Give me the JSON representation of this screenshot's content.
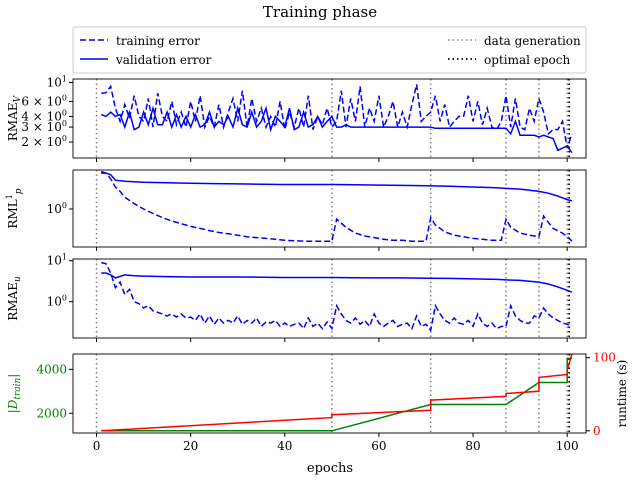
{
  "figure": {
    "title": "Training phase",
    "x_axis_label": "epochs",
    "x_ticks": [
      0,
      20,
      40,
      60,
      80,
      100
    ]
  },
  "legend": [
    {
      "name": "training error",
      "style": "dashed",
      "color": "#0000ff"
    },
    {
      "name": "validation error",
      "style": "solid",
      "color": "#0000ff"
    },
    {
      "name": "data generation",
      "style": "dotted",
      "color": "#808080"
    },
    {
      "name": "optimal epoch",
      "style": "dotted",
      "color": "#000000"
    }
  ],
  "colors": {
    "blue": "#0000ff",
    "green": "#008000",
    "red": "#ff0000",
    "gray": "#808080",
    "black": "#000000"
  },
  "chart_data": [
    {
      "type": "line",
      "ylabel": "RMAE_V",
      "yscale": "log",
      "ylim": [
        1.3,
        11
      ],
      "y_ticks": [
        {
          "v": 10,
          "t": "10"
        },
        {
          "v": 6,
          "t": "6 × 10"
        },
        {
          "v": 4,
          "t": "4 × 10"
        },
        {
          "v": 3,
          "t": "3 × 10"
        },
        {
          "v": 2,
          "t": "2 × 10"
        }
      ],
      "xlim": [
        -5,
        104
      ],
      "vlines_data_generation": [
        0,
        50,
        71,
        87,
        94,
        100
      ],
      "vline_optimal": 100,
      "series": [
        {
          "name": "training error",
          "style": "dashed",
          "x": [
            1,
            2,
            3,
            4,
            5,
            6,
            7,
            8,
            9,
            10,
            11,
            12,
            13,
            14,
            15,
            16,
            17,
            18,
            19,
            20,
            21,
            22,
            23,
            24,
            25,
            26,
            27,
            28,
            29,
            30,
            31,
            32,
            33,
            34,
            35,
            36,
            37,
            38,
            39,
            40,
            41,
            42,
            43,
            44,
            45,
            46,
            47,
            48,
            49,
            50,
            51,
            52,
            53,
            54,
            55,
            56,
            57,
            58,
            59,
            60,
            61,
            62,
            63,
            64,
            65,
            66,
            67,
            68,
            69,
            70,
            71,
            72,
            73,
            74,
            75,
            76,
            77,
            78,
            79,
            80,
            81,
            82,
            83,
            84,
            85,
            86,
            87,
            88,
            89,
            90,
            91,
            92,
            93,
            94,
            95,
            96,
            97,
            98,
            99,
            100,
            101
          ],
          "y": [
            7.5,
            7.6,
            9.0,
            5.0,
            3.5,
            5.5,
            3.8,
            7.0,
            4.0,
            3.5,
            6.5,
            3.0,
            7.5,
            4.0,
            3.5,
            6.0,
            3.2,
            4.5,
            3.0,
            6.0,
            3.5,
            7.0,
            3.0,
            4.0,
            3.0,
            5.5,
            3.0,
            4.5,
            6.5,
            3.5,
            8.0,
            3.0,
            6.5,
            3.5,
            5.0,
            3.0,
            4.0,
            3.0,
            6.0,
            2.8,
            4.5,
            3.0,
            5.0,
            3.0,
            7.0,
            2.8,
            4.0,
            3.2,
            5.0,
            3.0,
            3.5,
            8.0,
            3.0,
            6.5,
            3.5,
            9.0,
            3.0,
            5.0,
            3.5,
            7.0,
            3.0,
            4.0,
            6.0,
            3.0,
            4.5,
            3.0,
            5.5,
            9.5,
            3.5,
            4.0,
            4.5,
            7.0,
            3.5,
            5.5,
            3.0,
            3.5,
            4.0,
            4.0,
            7.0,
            3.5,
            6.0,
            3.2,
            5.0,
            3.0,
            2.8,
            3.5,
            7.0,
            3.0,
            6.5,
            3.0,
            2.8,
            5.0,
            3.5,
            6.5,
            4.5,
            2.5,
            2.8,
            2.8,
            3.5,
            1.7,
            2.5
          ]
        },
        {
          "name": "validation error",
          "style": "solid",
          "x": [
            1,
            2,
            3,
            4,
            5,
            6,
            7,
            8,
            9,
            10,
            11,
            12,
            13,
            14,
            15,
            16,
            17,
            18,
            19,
            20,
            21,
            22,
            23,
            24,
            25,
            26,
            27,
            28,
            29,
            30,
            31,
            32,
            33,
            34,
            35,
            36,
            37,
            38,
            39,
            40,
            41,
            42,
            43,
            44,
            45,
            46,
            47,
            48,
            49,
            50,
            51,
            52,
            53,
            54,
            55,
            56,
            57,
            58,
            59,
            60,
            61,
            62,
            63,
            64,
            65,
            66,
            67,
            68,
            69,
            70,
            71,
            72,
            73,
            74,
            75,
            76,
            77,
            78,
            79,
            80,
            81,
            82,
            83,
            84,
            85,
            86,
            87,
            88,
            89,
            90,
            91,
            92,
            93,
            94,
            95,
            96,
            97,
            98,
            99,
            100,
            101
          ],
          "y": [
            4.2,
            4.0,
            4.5,
            4.0,
            4.2,
            3.0,
            4.5,
            2.8,
            3.0,
            4.5,
            3.2,
            5.0,
            3.2,
            3.2,
            4.5,
            3.0,
            4.2,
            3.0,
            4.0,
            3.0,
            4.2,
            3.0,
            3.2,
            4.5,
            3.0,
            3.5,
            3.2,
            4.0,
            3.0,
            5.0,
            3.2,
            3.0,
            4.5,
            3.0,
            3.5,
            5.0,
            2.8,
            4.0,
            3.5,
            3.0,
            5.0,
            2.8,
            3.0,
            4.5,
            3.0,
            3.2,
            4.0,
            3.0,
            3.5,
            4.0,
            3.0,
            3.0,
            3.2,
            3.0,
            3.0,
            3.0,
            3.0,
            3.0,
            3.0,
            3.0,
            3.0,
            3.0,
            3.0,
            3.0,
            3.0,
            3.0,
            3.0,
            3.0,
            3.0,
            3.0,
            3.0,
            2.9,
            2.9,
            2.9,
            2.9,
            2.9,
            2.9,
            2.9,
            2.9,
            2.9,
            2.9,
            2.9,
            2.9,
            2.9,
            2.9,
            2.9,
            2.9,
            2.5,
            3.5,
            2.4,
            2.4,
            2.4,
            2.4,
            2.3,
            2.4,
            2.3,
            2.2,
            1.6,
            1.7,
            1.8,
            1.5
          ]
        }
      ]
    },
    {
      "type": "line",
      "ylabel": "RML^1_p",
      "yscale": "log",
      "ylim": [
        0.15,
        7
      ],
      "y_ticks": [
        {
          "v": 1,
          "t": "10"
        }
      ],
      "xlim": [
        -5,
        104
      ],
      "vlines_data_generation": [
        0,
        50,
        71,
        87,
        94,
        100
      ],
      "vline_optimal": 100,
      "series": [
        {
          "name": "training error",
          "style": "dashed",
          "x": [
            1,
            2,
            3,
            4,
            5,
            6,
            8,
            10,
            12,
            14,
            16,
            18,
            20,
            22,
            24,
            26,
            28,
            30,
            32,
            34,
            36,
            38,
            40,
            42,
            44,
            46,
            48,
            50,
            51,
            53,
            55,
            57,
            59,
            61,
            63,
            65,
            67,
            69,
            70,
            71,
            72,
            74,
            76,
            78,
            80,
            82,
            84,
            86,
            87,
            88,
            90,
            92,
            94,
            95,
            97,
            99,
            100,
            101
          ],
          "y": [
            6.5,
            6.0,
            4.5,
            3.0,
            2.4,
            1.8,
            1.3,
            1.0,
            0.8,
            0.65,
            0.55,
            0.48,
            0.42,
            0.38,
            0.34,
            0.31,
            0.29,
            0.27,
            0.25,
            0.24,
            0.23,
            0.22,
            0.21,
            0.205,
            0.2,
            0.2,
            0.2,
            0.2,
            0.6,
            0.4,
            0.3,
            0.26,
            0.24,
            0.22,
            0.21,
            0.21,
            0.2,
            0.2,
            0.2,
            0.65,
            0.45,
            0.32,
            0.27,
            0.25,
            0.23,
            0.22,
            0.21,
            0.21,
            0.6,
            0.4,
            0.3,
            0.27,
            0.25,
            0.7,
            0.38,
            0.3,
            0.25,
            0.2
          ]
        },
        {
          "name": "validation error",
          "style": "solid",
          "x": [
            1,
            2,
            3,
            4,
            6,
            8,
            10,
            15,
            20,
            25,
            30,
            35,
            40,
            45,
            50,
            55,
            60,
            65,
            70,
            75,
            80,
            85,
            87,
            90,
            94,
            96,
            98,
            100,
            101
          ],
          "y": [
            6.0,
            6.0,
            5.5,
            4.2,
            4.0,
            3.9,
            3.8,
            3.7,
            3.6,
            3.55,
            3.5,
            3.45,
            3.4,
            3.4,
            3.4,
            3.35,
            3.3,
            3.25,
            3.2,
            3.1,
            3.0,
            2.9,
            2.8,
            2.7,
            2.4,
            2.2,
            1.9,
            1.6,
            1.5
          ]
        }
      ]
    },
    {
      "type": "line",
      "ylabel": "RMAE_u",
      "yscale": "log",
      "ylim": [
        0.13,
        11
      ],
      "y_ticks": [
        {
          "v": 10,
          "t": "10"
        },
        {
          "v": 1,
          "t": "10"
        }
      ],
      "xlim": [
        -5,
        104
      ],
      "vlines_data_generation": [
        0,
        50,
        71,
        87,
        94,
        100
      ],
      "vline_optimal": 100,
      "series": [
        {
          "name": "training error",
          "style": "dashed",
          "x": [
            1,
            2,
            3,
            4,
            5,
            6,
            7,
            8,
            9,
            10,
            11,
            12,
            13,
            14,
            15,
            16,
            17,
            18,
            19,
            20,
            21,
            22,
            23,
            24,
            25,
            26,
            27,
            28,
            29,
            30,
            31,
            32,
            33,
            34,
            35,
            36,
            37,
            38,
            39,
            40,
            41,
            42,
            43,
            44,
            45,
            46,
            47,
            48,
            49,
            50,
            51,
            52,
            53,
            54,
            55,
            56,
            57,
            58,
            59,
            60,
            61,
            62,
            63,
            64,
            65,
            66,
            67,
            68,
            69,
            70,
            71,
            72,
            73,
            74,
            75,
            76,
            77,
            78,
            79,
            80,
            81,
            82,
            83,
            84,
            85,
            86,
            87,
            88,
            89,
            90,
            91,
            92,
            93,
            94,
            95,
            96,
            97,
            98,
            99,
            100,
            101
          ],
          "y": [
            9.0,
            8.5,
            5.0,
            2.2,
            3.0,
            1.5,
            2.0,
            1.0,
            0.9,
            0.7,
            0.8,
            0.6,
            0.55,
            0.5,
            0.45,
            0.5,
            0.42,
            0.5,
            0.4,
            0.42,
            0.35,
            0.5,
            0.3,
            0.45,
            0.28,
            0.4,
            0.3,
            0.35,
            0.3,
            0.45,
            0.28,
            0.35,
            0.3,
            0.4,
            0.25,
            0.32,
            0.3,
            0.35,
            0.25,
            0.3,
            0.25,
            0.28,
            0.3,
            0.22,
            0.4,
            0.25,
            0.3,
            0.22,
            0.32,
            0.22,
            0.8,
            0.5,
            0.35,
            0.3,
            0.4,
            0.28,
            0.35,
            0.25,
            0.5,
            0.3,
            0.25,
            0.3,
            0.35,
            0.25,
            0.28,
            0.3,
            0.22,
            0.45,
            0.25,
            0.28,
            0.2,
            0.8,
            0.5,
            0.35,
            0.3,
            0.4,
            0.3,
            0.28,
            0.35,
            0.25,
            0.5,
            0.3,
            0.25,
            0.3,
            0.22,
            0.25,
            0.25,
            0.8,
            0.45,
            0.35,
            0.3,
            0.3,
            0.45,
            0.4,
            0.7,
            0.5,
            0.4,
            0.35,
            0.3,
            0.28,
            0.25
          ]
        },
        {
          "name": "validation error",
          "style": "solid",
          "x": [
            1,
            2,
            3,
            4,
            6,
            8,
            10,
            15,
            20,
            25,
            30,
            35,
            40,
            45,
            50,
            55,
            60,
            65,
            70,
            75,
            80,
            85,
            87,
            90,
            94,
            96,
            98,
            100,
            101
          ],
          "y": [
            5.0,
            5.0,
            4.5,
            3.8,
            4.5,
            4.3,
            4.2,
            4.1,
            4.0,
            4.0,
            4.0,
            3.95,
            3.9,
            3.9,
            3.9,
            3.85,
            3.8,
            3.8,
            3.75,
            3.7,
            3.6,
            3.5,
            3.4,
            3.3,
            3.0,
            2.7,
            2.3,
            1.9,
            1.7
          ]
        }
      ]
    },
    {
      "type": "line",
      "ylabel": "|D_train|",
      "y2label": "runtime (s)",
      "ylim": [
        1100,
        4700
      ],
      "y_ticks": [
        2000,
        4000
      ],
      "y2lim": [
        -3,
        105
      ],
      "y2_ticks": [
        0,
        100
      ],
      "xlim": [
        -5,
        104
      ],
      "vlines_data_generation": [
        0,
        50,
        71,
        87,
        94,
        100
      ],
      "vline_optimal": 100,
      "series": [
        {
          "name": "|D_train|",
          "axis": "left",
          "color": "#008000",
          "x": [
            1,
            50,
            50,
            71,
            71,
            87,
            87,
            94,
            94,
            100,
            100,
            101
          ],
          "y": [
            1200,
            1200,
            1200,
            2400,
            2400,
            2400,
            2400,
            3400,
            3400,
            3400,
            4500,
            4500
          ]
        },
        {
          "name": "runtime (s)",
          "axis": "right",
          "color": "#ff0000",
          "x": [
            1,
            50,
            50,
            71,
            71,
            87,
            87,
            94,
            94,
            100,
            100,
            101
          ],
          "y": [
            0,
            18,
            22,
            28,
            42,
            47,
            51,
            54,
            73,
            77,
            83,
            105
          ]
        }
      ]
    }
  ]
}
